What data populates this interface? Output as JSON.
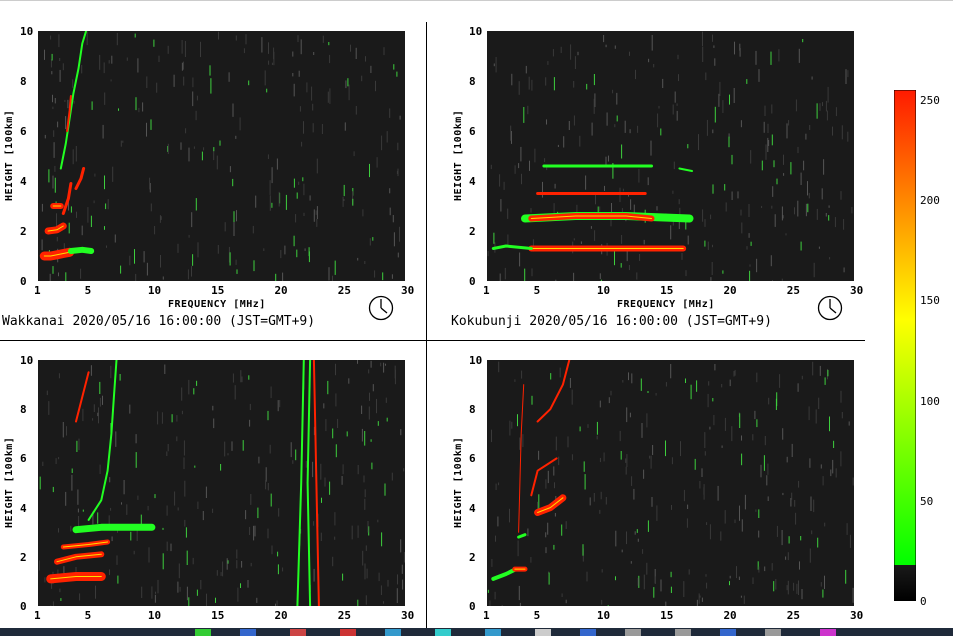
{
  "colorbar": {
    "ticks": [
      "250",
      "200",
      "150",
      "100",
      "50",
      "0"
    ],
    "values": [
      250,
      200,
      150,
      100,
      50,
      0
    ],
    "min": 0,
    "max": 255,
    "colors": {
      "high": "#ff1a00",
      "mid": "#ffff00",
      "low": "#00ff00",
      "floor": "#000000"
    }
  },
  "panels": [
    {
      "id": "wakkanai",
      "ylabel": "HEIGHT [100km]",
      "xlabel": "FREQUENCY [MHz]",
      "caption": "Wakkanai 2020/05/16 16:00:00 (JST=GMT+9)",
      "show_xlabel": true,
      "yticks": [
        "10",
        "8",
        "6",
        "4",
        "2",
        "0"
      ],
      "xticks": [
        "1",
        "5",
        "10",
        "15",
        "20",
        "25",
        "30"
      ],
      "chart_data": {
        "type": "heatmap",
        "xlim": [
          1,
          30
        ],
        "ylim": [
          0,
          10
        ],
        "traces": [
          {
            "name": "",
            "points": [
              [
                1.5,
                1.0
              ],
              [
                2.0,
                1.0
              ],
              [
                2.5,
                1.05
              ],
              [
                3.0,
                1.1
              ],
              [
                3.5,
                1.15
              ]
            ],
            "intensity": "red",
            "width": 9
          },
          {
            "name": "",
            "points": [
              [
                3.6,
                1.2
              ],
              [
                4.5,
                1.25
              ],
              [
                5.2,
                1.2
              ]
            ],
            "intensity": "green",
            "width": 6
          },
          {
            "name": "",
            "points": [
              [
                1.8,
                2.0
              ],
              [
                2.5,
                2.05
              ],
              [
                3.0,
                2.2
              ]
            ],
            "intensity": "red",
            "width": 7
          },
          {
            "name": "",
            "points": [
              [
                2.2,
                3.0
              ],
              [
                2.8,
                3.0
              ]
            ],
            "intensity": "red",
            "width": 6
          },
          {
            "name": "",
            "points": [
              [
                3.0,
                2.7
              ],
              [
                3.4,
                3.3
              ],
              [
                3.6,
                3.9
              ]
            ],
            "intensity": "red",
            "width": 3
          },
          {
            "name": "",
            "points": [
              [
                4.0,
                3.7
              ],
              [
                4.4,
                4.1
              ],
              [
                4.6,
                4.5
              ]
            ],
            "intensity": "red",
            "width": 3
          },
          {
            "name": "",
            "points": [
              [
                2.8,
                4.5
              ],
              [
                3.2,
                5.5
              ],
              [
                3.5,
                6.5
              ],
              [
                3.8,
                7.5
              ],
              [
                4.2,
                8.5
              ],
              [
                4.5,
                9.5
              ],
              [
                4.8,
                10
              ]
            ],
            "intensity": "green",
            "width": 2
          },
          {
            "name": "",
            "points": [
              [
                3.3,
                6.0
              ],
              [
                3.5,
                6.8
              ],
              [
                3.6,
                7.4
              ]
            ],
            "intensity": "red",
            "width": 2
          }
        ]
      }
    },
    {
      "id": "kokubunji",
      "ylabel": "HEIGHT [100km]",
      "xlabel": "FREQUENCY [MHz]",
      "caption": "Kokubunji 2020/05/16 16:00:00 (JST=GMT+9)",
      "show_xlabel": true,
      "yticks": [
        "10",
        "8",
        "6",
        "4",
        "2",
        "0"
      ],
      "xticks": [
        "1",
        "5",
        "10",
        "15",
        "20",
        "25",
        "30"
      ],
      "chart_data": {
        "type": "heatmap",
        "xlim": [
          1,
          30
        ],
        "ylim": [
          0,
          10
        ],
        "traces": [
          {
            "name": "",
            "points": [
              [
                4.5,
                1.3
              ],
              [
                8,
                1.3
              ],
              [
                12,
                1.3
              ],
              [
                16.5,
                1.3
              ]
            ],
            "intensity": "red",
            "width": 6
          },
          {
            "name": "",
            "points": [
              [
                1.5,
                1.3
              ],
              [
                2.5,
                1.4
              ],
              [
                4.5,
                1.3
              ]
            ],
            "intensity": "green",
            "width": 3
          },
          {
            "name": "",
            "points": [
              [
                4.0,
                2.5
              ],
              [
                8,
                2.6
              ],
              [
                12,
                2.6
              ],
              [
                17,
                2.5
              ]
            ],
            "intensity": "green",
            "width": 8
          },
          {
            "name": "",
            "points": [
              [
                4.5,
                2.5
              ],
              [
                8,
                2.6
              ],
              [
                12,
                2.6
              ],
              [
                14,
                2.5
              ]
            ],
            "intensity": "red",
            "width": 6
          },
          {
            "name": "",
            "points": [
              [
                5.0,
                3.5
              ],
              [
                9,
                3.5
              ],
              [
                13.5,
                3.5
              ]
            ],
            "intensity": "red",
            "width": 3
          },
          {
            "name": "",
            "points": [
              [
                5.5,
                4.6
              ],
              [
                10,
                4.6
              ],
              [
                14,
                4.6
              ]
            ],
            "intensity": "green",
            "width": 3
          },
          {
            "name": "",
            "points": [
              [
                16.2,
                4.5
              ],
              [
                17.2,
                4.4
              ]
            ],
            "intensity": "green",
            "width": 2
          }
        ]
      }
    },
    {
      "id": "bottom-left",
      "ylabel": "HEIGHT [100km]",
      "xlabel": "",
      "caption": "",
      "show_xlabel": false,
      "yticks": [
        "10",
        "8",
        "6",
        "4",
        "2",
        "0"
      ],
      "xticks": [
        "1",
        "5",
        "10",
        "15",
        "20",
        "25",
        "30"
      ],
      "chart_data": {
        "type": "heatmap",
        "xlim": [
          1,
          30
        ],
        "ylim": [
          0,
          10
        ],
        "traces": [
          {
            "name": "",
            "points": [
              [
                2,
                1.1
              ],
              [
                4,
                1.2
              ],
              [
                6,
                1.2
              ]
            ],
            "intensity": "red",
            "width": 9
          },
          {
            "name": "",
            "points": [
              [
                2.5,
                1.8
              ],
              [
                4,
                2.0
              ],
              [
                6,
                2.1
              ]
            ],
            "intensity": "red",
            "width": 6
          },
          {
            "name": "",
            "points": [
              [
                3,
                2.4
              ],
              [
                5,
                2.5
              ],
              [
                6.5,
                2.6
              ]
            ],
            "intensity": "red",
            "width": 5
          },
          {
            "name": "",
            "points": [
              [
                4,
                3.1
              ],
              [
                6,
                3.2
              ],
              [
                10,
                3.2
              ]
            ],
            "intensity": "green",
            "width": 7
          },
          {
            "name": "",
            "points": [
              [
                5,
                3.5
              ],
              [
                6,
                4.3
              ],
              [
                6.5,
                5.5
              ],
              [
                6.8,
                7
              ],
              [
                7,
                8.5
              ],
              [
                7.2,
                10
              ]
            ],
            "intensity": "green",
            "width": 2
          },
          {
            "name": "",
            "points": [
              [
                4.0,
                7.5
              ],
              [
                4.5,
                8.5
              ],
              [
                5,
                9.5
              ]
            ],
            "intensity": "red",
            "width": 2
          },
          {
            "name": "",
            "points": [
              [
                21.5,
                0
              ],
              [
                21.8,
                5
              ],
              [
                22,
                10
              ]
            ],
            "intensity": "green",
            "width": 2
          },
          {
            "name": "",
            "points": [
              [
                23.2,
                0
              ],
              [
                23,
                5
              ],
              [
                22.8,
                10
              ]
            ],
            "intensity": "red",
            "width": 2
          },
          {
            "name": "",
            "points": [
              [
                22.5,
                0
              ],
              [
                22.3,
                5
              ],
              [
                22.5,
                10
              ]
            ],
            "intensity": "green",
            "width": 2
          }
        ]
      }
    },
    {
      "id": "bottom-right",
      "ylabel": "HEIGHT [100km]",
      "xlabel": "",
      "caption": "",
      "show_xlabel": false,
      "yticks": [
        "10",
        "8",
        "6",
        "4",
        "2",
        "0"
      ],
      "xticks": [
        "1",
        "5",
        "10",
        "15",
        "20",
        "25",
        "30"
      ],
      "chart_data": {
        "type": "heatmap",
        "xlim": [
          1,
          30
        ],
        "ylim": [
          0,
          10
        ],
        "traces": [
          {
            "name": "",
            "points": [
              [
                1.5,
                1.1
              ],
              [
                2.5,
                1.3
              ],
              [
                3.3,
                1.5
              ]
            ],
            "intensity": "green",
            "width": 4
          },
          {
            "name": "",
            "points": [
              [
                3.2,
                1.5
              ],
              [
                4.0,
                1.5
              ]
            ],
            "intensity": "red",
            "width": 5
          },
          {
            "name": "",
            "points": [
              [
                3.5,
                2.8
              ],
              [
                4.0,
                2.9
              ]
            ],
            "intensity": "green",
            "width": 3
          },
          {
            "name": "",
            "points": [
              [
                5,
                3.8
              ],
              [
                6,
                4.0
              ],
              [
                7,
                4.4
              ]
            ],
            "intensity": "red",
            "width": 7
          },
          {
            "name": "",
            "points": [
              [
                4.5,
                4.5
              ],
              [
                5,
                5.5
              ],
              [
                6.5,
                6
              ]
            ],
            "intensity": "red",
            "width": 2
          },
          {
            "name": "",
            "points": [
              [
                5,
                7.5
              ],
              [
                6,
                8
              ],
              [
                7,
                9
              ],
              [
                7.5,
                10
              ]
            ],
            "intensity": "red",
            "width": 2
          },
          {
            "name": "",
            "points": [
              [
                3.5,
                3
              ],
              [
                3.6,
                5
              ],
              [
                3.7,
                7
              ],
              [
                3.9,
                9
              ]
            ],
            "intensity": "red",
            "width": 1
          }
        ]
      }
    }
  ]
}
